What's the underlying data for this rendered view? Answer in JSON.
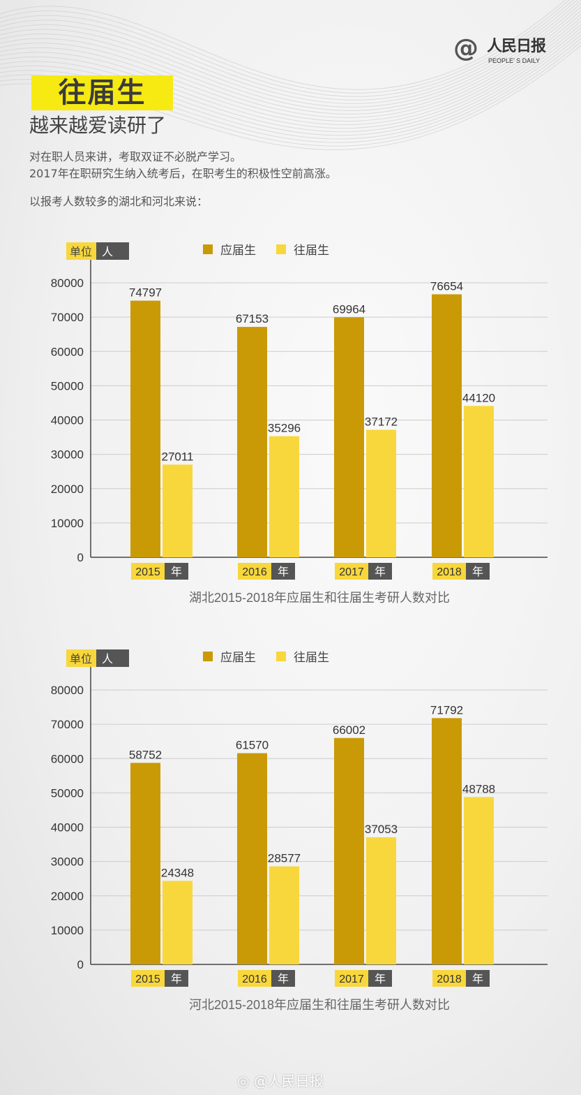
{
  "logo": {
    "cn": "人民日报",
    "en": "PEOPLE’ S DAILY"
  },
  "header": {
    "title": "往届生",
    "subtitle": "越来越爱读研了",
    "paragraphs": [
      "对在职人员来讲，考取双证不必脱产学习。",
      "2017年在职研究生纳入统考后，在职考生的积极性空前高涨。",
      "以报考人数较多的湖北和河北来说："
    ]
  },
  "colors": {
    "fresh": "#c99a05",
    "previous": "#f8d73c",
    "unit_dark": "#555555",
    "title_bg": "#f6ea12"
  },
  "chart_data": [
    {
      "type": "bar",
      "title": "湖北2015-2018年应届生和往届生考研人数对比",
      "unit_label": "单位",
      "unit": "人",
      "categories": [
        "2015",
        "2016",
        "2017",
        "2018"
      ],
      "category_suffix": "年",
      "ylim": [
        0,
        80000
      ],
      "yticks": [
        "0",
        "10000",
        "20000",
        "30000",
        "40000",
        "50000",
        "60000",
        "70000",
        "80000"
      ],
      "grid": true,
      "legend": "top",
      "series": [
        {
          "name": "应届生",
          "values": [
            74797,
            67153,
            69964,
            76654
          ]
        },
        {
          "name": "往届生",
          "values": [
            27011,
            35296,
            37172,
            44120
          ]
        }
      ]
    },
    {
      "type": "bar",
      "title": "河北2015-2018年应届生和往届生考研人数对比",
      "unit_label": "单位",
      "unit": "人",
      "categories": [
        "2015",
        "2016",
        "2017",
        "2018"
      ],
      "category_suffix": "年",
      "ylim": [
        0,
        80000
      ],
      "yticks": [
        "0",
        "10000",
        "20000",
        "30000",
        "40000",
        "50000",
        "60000",
        "70000",
        "80000"
      ],
      "grid": true,
      "legend": "top",
      "series": [
        {
          "name": "应届生",
          "values": [
            58752,
            61570,
            66002,
            71792
          ]
        },
        {
          "name": "往届生",
          "values": [
            24348,
            28577,
            37053,
            48788
          ]
        }
      ]
    }
  ],
  "watermark": "@人民日报"
}
